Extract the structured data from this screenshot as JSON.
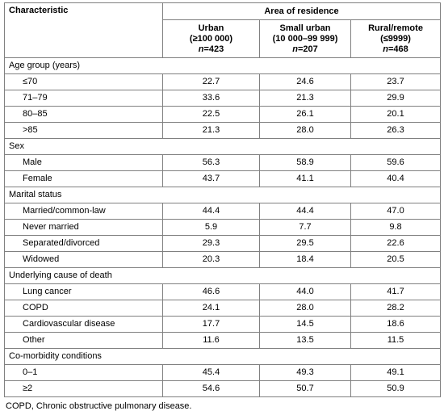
{
  "header": {
    "characteristic": "Characteristic",
    "group": "Area of residence",
    "columns": [
      {
        "line1": "Urban",
        "line2": "(≥100 000)",
        "n": "n",
        "count": "=423"
      },
      {
        "line1": "Small urban",
        "line2": "(10 000–99 999)",
        "n": "n",
        "count": "=207"
      },
      {
        "line1": "Rural/remote",
        "line2": "(≤9999)",
        "n": "n",
        "count": "=468"
      }
    ]
  },
  "sections": [
    {
      "title": "Age group (years)",
      "rows": [
        {
          "label": "≤70",
          "values": [
            "22.7",
            "24.6",
            "23.7"
          ]
        },
        {
          "label": "71–79",
          "values": [
            "33.6",
            "21.3",
            "29.9"
          ]
        },
        {
          "label": "80–85",
          "values": [
            "22.5",
            "26.1",
            "20.1"
          ]
        },
        {
          "label": ">85",
          "values": [
            "21.3",
            "28.0",
            "26.3"
          ]
        }
      ]
    },
    {
      "title": "Sex",
      "rows": [
        {
          "label": "Male",
          "values": [
            "56.3",
            "58.9",
            "59.6"
          ]
        },
        {
          "label": "Female",
          "values": [
            "43.7",
            "41.1",
            "40.4"
          ]
        }
      ]
    },
    {
      "title": "Marital status",
      "rows": [
        {
          "label": "Married/common-law",
          "values": [
            "44.4",
            "44.4",
            "47.0"
          ]
        },
        {
          "label": "Never married",
          "values": [
            "5.9",
            "7.7",
            "9.8"
          ]
        },
        {
          "label": "Separated/divorced",
          "values": [
            "29.3",
            "29.5",
            "22.6"
          ]
        },
        {
          "label": "Widowed",
          "values": [
            "20.3",
            "18.4",
            "20.5"
          ]
        }
      ]
    },
    {
      "title": "Underlying cause of death",
      "rows": [
        {
          "label": "Lung cancer",
          "values": [
            "46.6",
            "44.0",
            "41.7"
          ]
        },
        {
          "label": "COPD",
          "values": [
            "24.1",
            "28.0",
            "28.2"
          ]
        },
        {
          "label": "Cardiovascular disease",
          "values": [
            "17.7",
            "14.5",
            "18.6"
          ]
        },
        {
          "label": "Other",
          "values": [
            "11.6",
            "13.5",
            "11.5"
          ]
        }
      ]
    },
    {
      "title": "Co-morbidity conditions",
      "rows": [
        {
          "label": "0–1",
          "values": [
            "45.4",
            "49.3",
            "49.1"
          ]
        },
        {
          "label": "≥2",
          "values": [
            "54.6",
            "50.7",
            "50.9"
          ]
        }
      ]
    }
  ],
  "footnote": "COPD, Chronic obstructive pulmonary disease."
}
